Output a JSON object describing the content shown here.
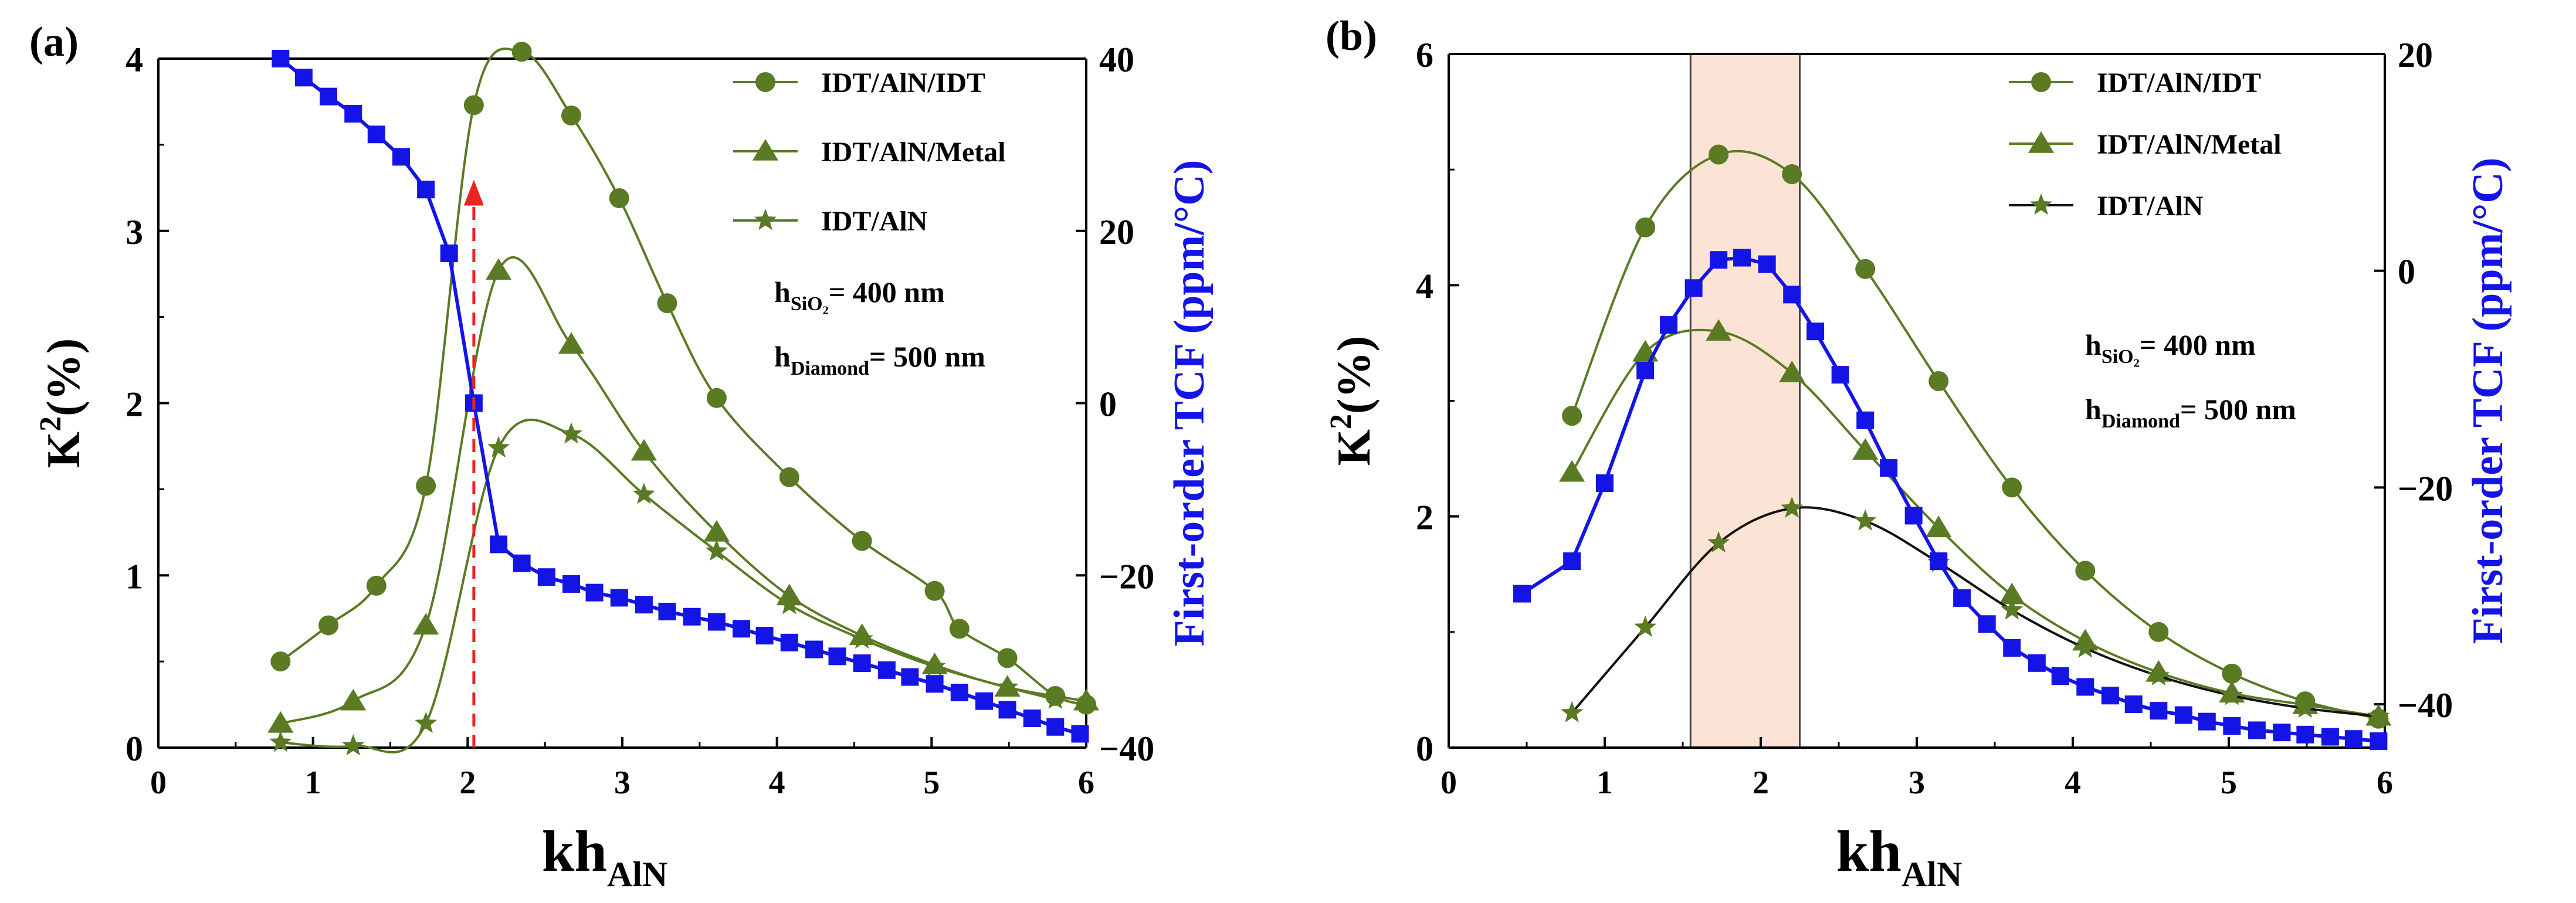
{
  "colors": {
    "green": "#5a7a23",
    "blue": "#1414e6",
    "black": "#111111",
    "arrow": "#e8251e",
    "band_fill": "#fbe3d6",
    "band_stroke": "#444444"
  },
  "chart_data": [
    {
      "panel_label": "(a)",
      "type": "line",
      "xlabel": {
        "main": "kh",
        "sub": "AlN"
      },
      "ylabel": {
        "main": "K",
        "sup": "2",
        "rest": "(%)"
      },
      "y2label": "First-order TCF (ppm/°C)",
      "xlim": [
        0,
        6
      ],
      "ylim": [
        0,
        4
      ],
      "y2lim": [
        -40,
        40
      ],
      "xticks": [
        0,
        1,
        2,
        3,
        4,
        5,
        6
      ],
      "yticks": [
        0,
        1,
        2,
        3,
        4
      ],
      "y2ticks": [
        -40,
        -20,
        0,
        20,
        40
      ],
      "annotations": [
        {
          "main": "h",
          "sub": "SiO₂",
          "rest": "= 400 nm"
        },
        {
          "main": "h",
          "sub": "Diamond",
          "rest": "= 500 nm"
        }
      ],
      "legend": {
        "position": "top-right",
        "entries": [
          "IDT/AlN/IDT",
          "IDT/AlN/Metal",
          "IDT/AlN"
        ]
      },
      "series": [
        {
          "name": "IDT/AlN/IDT",
          "axis": "left",
          "marker": "circle",
          "color_key": "green",
          "x": [
            0.79,
            1.1,
            1.41,
            1.73,
            2.04,
            2.35,
            2.67,
            2.98,
            3.29,
            3.61,
            4.08,
            4.55,
            5.02,
            5.18,
            5.49,
            5.8,
            6.0
          ],
          "y": [
            0.5,
            0.71,
            0.94,
            1.52,
            3.73,
            4.04,
            3.67,
            3.19,
            2.58,
            2.03,
            1.57,
            1.2,
            0.91,
            0.69,
            0.52,
            0.3,
            0.25
          ]
        },
        {
          "name": "IDT/AlN/Metal",
          "axis": "left",
          "marker": "triangle",
          "color_key": "green",
          "x": [
            0.79,
            1.26,
            1.73,
            2.2,
            2.67,
            3.14,
            3.61,
            4.08,
            4.55,
            5.02,
            5.49,
            6.0
          ],
          "y": [
            0.14,
            0.27,
            0.71,
            2.77,
            2.34,
            1.72,
            1.25,
            0.88,
            0.65,
            0.48,
            0.35,
            0.27
          ]
        },
        {
          "name": "IDT/AlN",
          "axis": "left",
          "marker": "star",
          "color_key": "green",
          "x": [
            0.79,
            1.26,
            1.73,
            2.2,
            2.67,
            3.14,
            3.61,
            4.08,
            4.55,
            5.02,
            5.49,
            5.8
          ],
          "y": [
            0.03,
            0.01,
            0.14,
            1.74,
            1.82,
            1.47,
            1.14,
            0.83,
            0.63,
            0.47,
            0.35,
            0.28
          ]
        },
        {
          "name": "TCF",
          "axis": "right",
          "marker": "square",
          "color_key": "blue",
          "x": [
            0.79,
            0.94,
            1.1,
            1.26,
            1.41,
            1.57,
            1.73,
            1.88,
            2.04,
            2.2,
            2.35,
            2.51,
            2.67,
            2.82,
            2.98,
            3.14,
            3.29,
            3.45,
            3.61,
            3.77,
            3.92,
            4.08,
            4.24,
            4.39,
            4.55,
            4.71,
            4.86,
            5.02,
            5.18,
            5.34,
            5.49,
            5.65,
            5.8,
            5.96
          ],
          "y": [
            40,
            37.8,
            35.6,
            33.6,
            31.2,
            28.6,
            24.8,
            17.4,
            0,
            -16.4,
            -18.6,
            -20.2,
            -21.0,
            -22.0,
            -22.6,
            -23.4,
            -24.2,
            -24.8,
            -25.4,
            -26.2,
            -27.0,
            -27.8,
            -28.6,
            -29.4,
            -30.2,
            -31.0,
            -31.8,
            -32.6,
            -33.6,
            -34.6,
            -35.6,
            -36.6,
            -37.6,
            -38.4
          ]
        }
      ],
      "arrow": {
        "x": 2.04,
        "y_from": 0,
        "y_to": 3.27,
        "color_key": "arrow",
        "style": "dashed"
      }
    },
    {
      "panel_label": "(b)",
      "type": "line",
      "xlabel": {
        "main": "kh",
        "sub": "AlN"
      },
      "ylabel": {
        "main": "K",
        "sup": "2",
        "rest": "(%)"
      },
      "y2label": "First-order TCF (ppm/°C)",
      "xlim": [
        0,
        6
      ],
      "ylim": [
        0,
        6
      ],
      "y2lim": [
        -44,
        20
      ],
      "xticks": [
        0,
        1,
        2,
        3,
        4,
        5,
        6
      ],
      "yticks": [
        0,
        2,
        4,
        6
      ],
      "y2ticks": [
        -40,
        -20,
        0,
        20
      ],
      "annotations": [
        {
          "main": "h",
          "sub": "SiO₂",
          "rest": "= 400 nm"
        },
        {
          "main": "h",
          "sub": "Diamond",
          "rest": "= 500 nm"
        }
      ],
      "legend": {
        "position": "top-right",
        "entries": [
          "IDT/AlN/IDT",
          "IDT/AlN/Metal",
          "IDT/AlN"
        ]
      },
      "highlight_band": {
        "x0": 1.55,
        "x1": 2.25
      },
      "series": [
        {
          "name": "IDT/AlN/IDT",
          "axis": "left",
          "marker": "circle",
          "color_key": "green",
          "x": [
            0.79,
            1.26,
            1.73,
            2.2,
            2.67,
            3.14,
            3.61,
            4.08,
            4.55,
            5.02,
            5.49,
            5.96
          ],
          "y": [
            2.87,
            4.5,
            5.13,
            4.96,
            4.14,
            3.17,
            2.25,
            1.53,
            1.0,
            0.64,
            0.4,
            0.25
          ]
        },
        {
          "name": "IDT/AlN/Metal",
          "axis": "left",
          "marker": "triangle",
          "color_key": "green",
          "x": [
            0.79,
            1.26,
            1.73,
            2.2,
            2.67,
            3.14,
            3.61,
            4.08,
            4.55,
            5.02,
            5.49,
            5.96
          ],
          "y": [
            2.38,
            3.42,
            3.6,
            3.24,
            2.57,
            1.9,
            1.32,
            0.92,
            0.65,
            0.47,
            0.37,
            0.27
          ]
        },
        {
          "name": "IDT/AlN",
          "axis": "left",
          "marker": "star",
          "color_key": "green",
          "line_color_key": "black",
          "x": [
            0.79,
            1.26,
            1.73,
            2.2,
            2.67,
            3.14,
            3.61,
            4.08,
            4.55,
            5.02,
            5.49,
            5.96
          ],
          "y": [
            0.3,
            1.04,
            1.77,
            2.07,
            1.96,
            1.6,
            1.19,
            0.86,
            0.62,
            0.45,
            0.34,
            0.27
          ]
        },
        {
          "name": "TCF",
          "axis": "right",
          "marker": "square",
          "color_key": "blue",
          "x": [
            0.47,
            0.79,
            1.0,
            1.26,
            1.41,
            1.57,
            1.73,
            1.88,
            2.04,
            2.2,
            2.35,
            2.51,
            2.67,
            2.82,
            2.98,
            3.14,
            3.29,
            3.45,
            3.61,
            3.77,
            3.92,
            4.08,
            4.24,
            4.39,
            4.55,
            4.71,
            4.86,
            5.02,
            5.18,
            5.34,
            5.49,
            5.65,
            5.8,
            5.96
          ],
          "y": [
            -29.8,
            -26.8,
            -19.6,
            -9.2,
            -5.0,
            -1.6,
            1.0,
            1.2,
            0.6,
            -2.2,
            -5.6,
            -9.6,
            -13.8,
            -18.2,
            -22.6,
            -26.8,
            -30.2,
            -32.6,
            -34.8,
            -36.2,
            -37.4,
            -38.4,
            -39.2,
            -40.0,
            -40.6,
            -41.0,
            -41.6,
            -42.0,
            -42.4,
            -42.6,
            -42.8,
            -43.0,
            -43.2,
            -43.4
          ]
        }
      ]
    }
  ]
}
